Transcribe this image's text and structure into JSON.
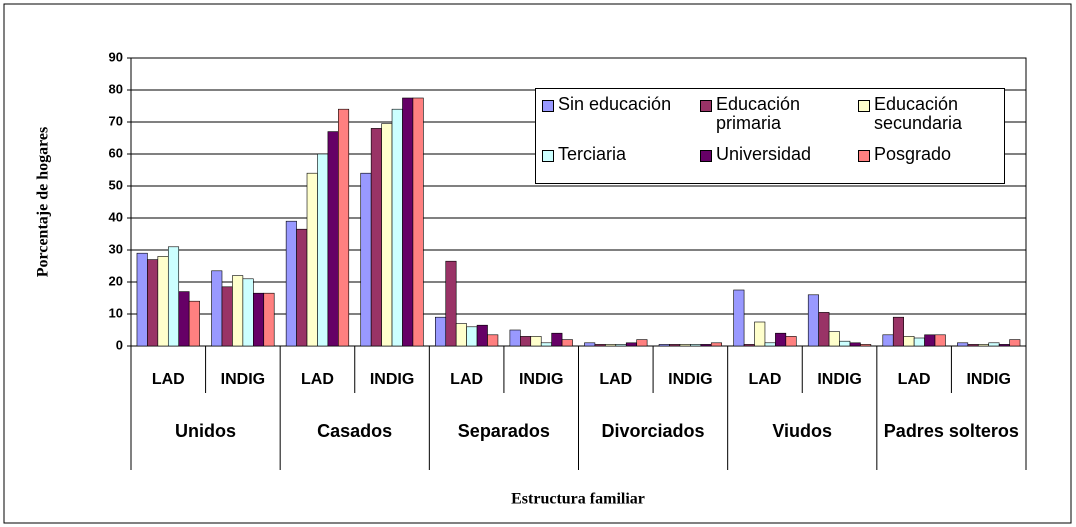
{
  "chart_data": {
    "type": "bar",
    "y_label": "Porcentaje de hogares",
    "x_label": "Estructura familiar",
    "categories": [
      "LAD",
      "INDIG",
      "LAD",
      "INDIG",
      "LAD",
      "INDIG",
      "LAD",
      "INDIG",
      "LAD",
      "INDIG",
      "LAD",
      "INDIG"
    ],
    "groups": [
      "Unidos",
      "Casados",
      "Separados",
      "Divorciados",
      "Viudos",
      "Padres solteros"
    ],
    "series": [
      {
        "name": "Sin educación",
        "color": "#9999ff",
        "values": [
          29,
          23.5,
          39,
          54,
          9,
          5,
          1,
          0.5,
          17.5,
          16,
          3.5,
          1
        ]
      },
      {
        "name": "Educación primaria",
        "color": "#993366",
        "values": [
          27,
          18.5,
          36.5,
          68,
          26.5,
          3,
          0.5,
          0.5,
          0.5,
          10.5,
          9,
          0.5
        ]
      },
      {
        "name": "Educación secundaria",
        "color": "#ffffcc",
        "values": [
          28,
          22,
          54,
          69.5,
          7,
          3,
          0.5,
          0.5,
          7.5,
          4.5,
          3,
          0.5
        ]
      },
      {
        "name": "Terciaria",
        "color": "#ccffff",
        "values": [
          31,
          21,
          60,
          74,
          6,
          1,
          0.5,
          0.5,
          1,
          1.5,
          2.5,
          1
        ]
      },
      {
        "name": "Universidad",
        "color": "#660066",
        "values": [
          17,
          16.5,
          67,
          77.5,
          6.5,
          4,
          1,
          0.5,
          4,
          1,
          3.5,
          0.5
        ]
      },
      {
        "name": "Posgrado",
        "color": "#ff8080",
        "values": [
          14,
          16.5,
          74,
          77.5,
          3.5,
          2,
          2,
          1,
          3,
          0.5,
          3.5,
          2
        ]
      }
    ],
    "ylim": [
      0,
      90
    ],
    "yticks": [
      0,
      10,
      20,
      30,
      40,
      50,
      60,
      70,
      80,
      90
    ],
    "grid": true
  }
}
